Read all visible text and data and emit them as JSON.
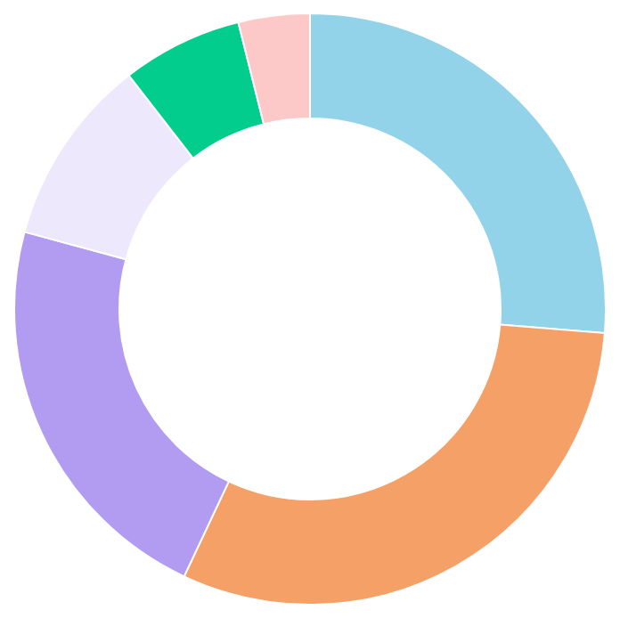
{
  "chart_data": {
    "type": "donut",
    "categories": [
      null,
      null,
      null,
      null,
      null,
      null
    ],
    "values": [
      26.3,
      30.7,
      22.2,
      10.3,
      6.6,
      3.9
    ],
    "colors": [
      "#93d3ea",
      "#f4a067",
      "#b19cf1",
      "#ede8fb",
      "#03cd8c",
      "#fcc8c8"
    ]
  }
}
